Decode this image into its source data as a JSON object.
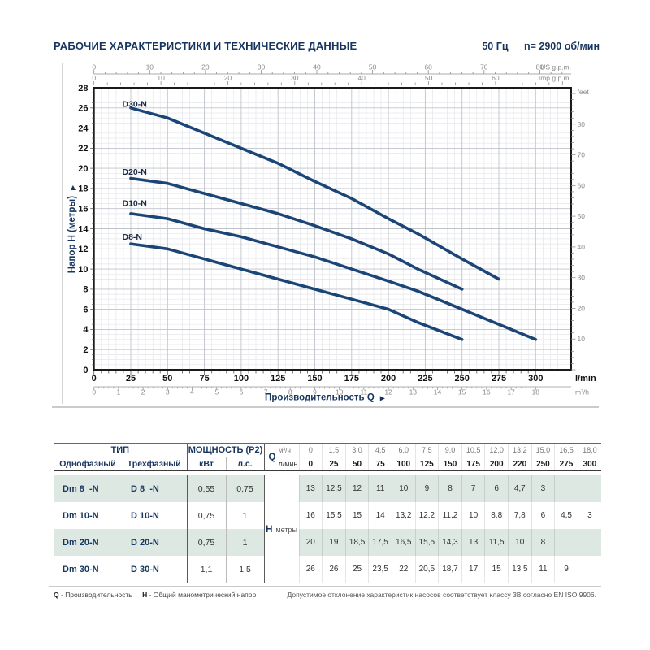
{
  "header": {
    "title": "РАБОЧИЕ ХАРАКТЕРИСТИКИ И ТЕХНИЧЕСКИЕ ДАННЫЕ",
    "frequency": "50 Гц",
    "speed": "n= 2900 об/мин"
  },
  "chart_data": {
    "type": "line",
    "xlabel": "Производительность Q",
    "ylabel": "Напор H (метры)",
    "x_axis_bottom_primary": {
      "unit": "l/min",
      "ticks": [
        0,
        25,
        50,
        75,
        100,
        125,
        150,
        175,
        200,
        225,
        250,
        275,
        300
      ]
    },
    "x_axis_bottom_secondary": {
      "unit": "m³/h",
      "min": 0,
      "max": 18,
      "step": 1
    },
    "x_axis_top_us": {
      "unit": "US g.p.m.",
      "min": 0,
      "max": 80,
      "step": 10
    },
    "x_axis_top_imp": {
      "unit": "Imp g.p.m.",
      "min": 0,
      "max": 60,
      "step": 10
    },
    "y_axis_left": {
      "unit": "метры",
      "min": 0,
      "max": 28,
      "step": 2
    },
    "y_axis_right": {
      "unit": "feet",
      "min": 0,
      "max": 80,
      "step": 10
    },
    "grid": "on",
    "curve_color": "#1c4577",
    "x_lmin": [
      25,
      50,
      75,
      100,
      125,
      150,
      175,
      200,
      220,
      250,
      275,
      300
    ],
    "series": [
      {
        "name": "D8-N",
        "values": [
          12.5,
          12,
          11,
          10,
          9,
          8,
          7,
          6,
          4.7,
          3,
          null,
          null
        ]
      },
      {
        "name": "D10-N",
        "values": [
          15.5,
          15,
          14,
          13.2,
          12.2,
          11.2,
          10,
          8.8,
          7.8,
          6,
          4.5,
          3
        ]
      },
      {
        "name": "D20-N",
        "values": [
          19,
          18.5,
          17.5,
          16.5,
          15.5,
          14.3,
          13,
          11.5,
          10,
          8,
          null,
          null
        ]
      },
      {
        "name": "D30-N",
        "values": [
          26,
          25,
          23.5,
          22,
          20.5,
          18.7,
          17,
          15,
          13.5,
          11,
          9,
          null
        ]
      }
    ]
  },
  "table": {
    "group_type": "ТИП",
    "group_power": "МОЩНОСТЬ (P2)",
    "col_single": "Однофазный",
    "col_three": "Трехфазный",
    "col_kw": "кВт",
    "col_hp": "л.с.",
    "q_label": "Q",
    "q_unit_1": "м³/ч",
    "q_unit_2": "л/мин",
    "h_label": "H",
    "h_unit": "метры",
    "q_m3h": [
      "0",
      "1,5",
      "3,0",
      "4,5",
      "6,0",
      "7,5",
      "9,0",
      "10,5",
      "12,0",
      "13,2",
      "15,0",
      "16,5",
      "18,0"
    ],
    "q_lmin": [
      "0",
      "25",
      "50",
      "75",
      "100",
      "125",
      "150",
      "175",
      "200",
      "220",
      "250",
      "275",
      "300"
    ],
    "rows": [
      {
        "single": "Dm 8  -N",
        "three": "D 8  -N",
        "kw": "0,55",
        "hp": "0,75",
        "h": [
          "13",
          "12,5",
          "12",
          "11",
          "10",
          "9",
          "8",
          "7",
          "6",
          "4,7",
          "3",
          "",
          ""
        ]
      },
      {
        "single": "Dm 10-N",
        "three": "D 10-N",
        "kw": "0,75",
        "hp": "1",
        "h": [
          "16",
          "15,5",
          "15",
          "14",
          "13,2",
          "12,2",
          "11,2",
          "10",
          "8,8",
          "7,8",
          "6",
          "4,5",
          "3"
        ]
      },
      {
        "single": "Dm 20-N",
        "three": "D 20-N",
        "kw": "0,75",
        "hp": "1",
        "h": [
          "20",
          "19",
          "18,5",
          "17,5",
          "16,5",
          "15,5",
          "14,3",
          "13",
          "11,5",
          "10",
          "8",
          "",
          ""
        ]
      },
      {
        "single": "Dm 30-N",
        "three": "D 30-N",
        "kw": "1,1",
        "hp": "1,5",
        "h": [
          "26",
          "26",
          "25",
          "23,5",
          "22",
          "20,5",
          "18,7",
          "17",
          "15",
          "13,5",
          "11",
          "9",
          ""
        ]
      }
    ]
  },
  "footnotes": {
    "left_q": "Q",
    "left_q_text": "- Производительность",
    "left_h": "H",
    "left_h_text": "- Общий манометрический напор",
    "right": "Допустимое отклонение характеристик насосов соответствует классу 3B согласно EN ISO 9906."
  }
}
